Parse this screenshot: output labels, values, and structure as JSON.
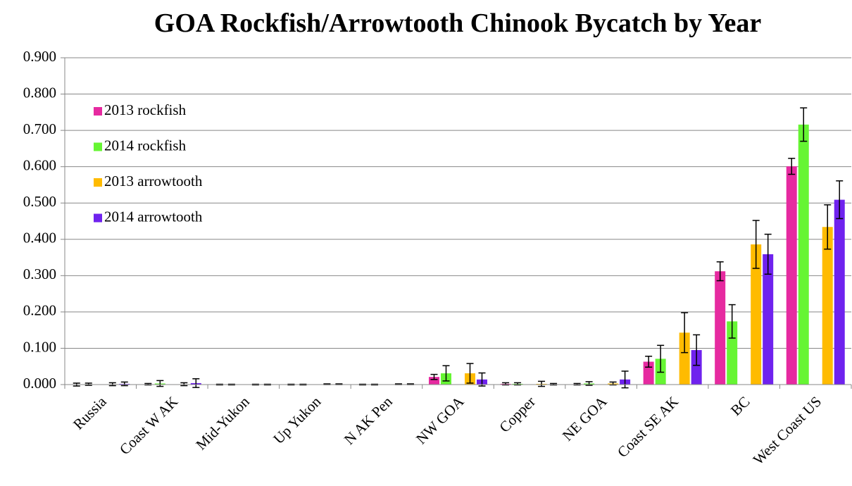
{
  "chart_data": {
    "type": "bar",
    "title": "GOA Rockfish/Arrowtooth Chinook Bycatch by Year",
    "categories": [
      "Russia",
      "Coast W AK",
      "Mid-Yukon",
      "Up Yukon",
      "N AK Pen",
      "NW GOA",
      "Copper",
      "NE GOA",
      "Coast SE AK",
      "BC",
      "West Coast US"
    ],
    "series": [
      {
        "name": "2013 rockfish",
        "color": "#e62aa0",
        "values": [
          0.0,
          0.001,
          0.0,
          0.0,
          0.0,
          0.021,
          0.002,
          0.001,
          0.063,
          0.312,
          0.601
        ],
        "errors": [
          0.004,
          0.002,
          0.001,
          0.001,
          0.001,
          0.007,
          0.003,
          0.002,
          0.015,
          0.026,
          0.022
        ]
      },
      {
        "name": "2014 rockfish",
        "color": "#66f533",
        "values": [
          0.001,
          0.003,
          0.0,
          0.0,
          0.0,
          0.031,
          0.002,
          0.003,
          0.071,
          0.174,
          0.716
        ],
        "errors": [
          0.003,
          0.008,
          0.001,
          0.001,
          0.001,
          0.021,
          0.003,
          0.005,
          0.037,
          0.046,
          0.046
        ]
      },
      {
        "name": "2013 arrowtooth",
        "color": "#ffbb00",
        "values": [
          0.001,
          0.001,
          0.0,
          0.001,
          0.001,
          0.031,
          0.002,
          0.003,
          0.143,
          0.386,
          0.434
        ],
        "errors": [
          0.004,
          0.004,
          0.001,
          0.001,
          0.001,
          0.027,
          0.007,
          0.004,
          0.055,
          0.066,
          0.061
        ]
      },
      {
        "name": "2014 arrowtooth",
        "color": "#6f22ee",
        "values": [
          0.002,
          0.004,
          0.0,
          0.001,
          0.001,
          0.014,
          0.001,
          0.014,
          0.095,
          0.359,
          0.509
        ],
        "errors": [
          0.005,
          0.012,
          0.001,
          0.001,
          0.001,
          0.018,
          0.002,
          0.023,
          0.042,
          0.055,
          0.052
        ]
      }
    ],
    "ylim": [
      0,
      0.9
    ],
    "yticks": [
      {
        "value": 0,
        "label": "0.000"
      },
      {
        "value": 0.1,
        "label": "0.100"
      },
      {
        "value": 0.2,
        "label": "0.200"
      },
      {
        "value": 0.3,
        "label": "0.300"
      },
      {
        "value": 0.4,
        "label": "0.400"
      },
      {
        "value": 0.5,
        "label": "0.500"
      },
      {
        "value": 0.6,
        "label": "0.600"
      },
      {
        "value": 0.7,
        "label": "0.700"
      },
      {
        "value": 0.8,
        "label": "0.800"
      },
      {
        "value": 0.9,
        "label": "0.900"
      }
    ],
    "grid": true,
    "legend": "top-left"
  }
}
